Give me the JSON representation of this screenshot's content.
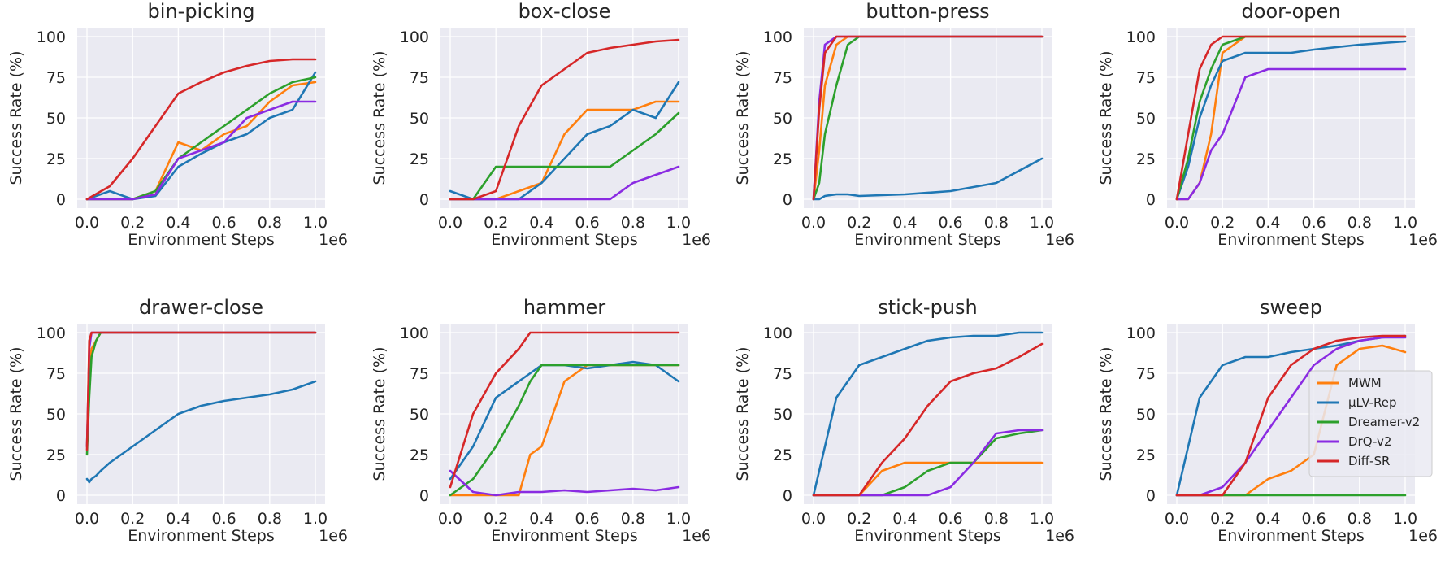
{
  "legend": {
    "placement": "center-right of last panel",
    "entries": [
      "MWM",
      "μLV-Rep",
      "Dreamer-v2",
      "DrQ-v2",
      "Diff-SR"
    ]
  },
  "colors": {
    "MWM": "#ff7f0e",
    "μLV-Rep": "#1f77b4",
    "Dreamer-v2": "#2ca02c",
    "DrQ-v2": "#8a2be2",
    "Diff-SR": "#d62728",
    "panel_background": "#eaeaf2",
    "grid": "#ffffff"
  },
  "chart_data": [
    {
      "type": "line",
      "title": "bin-picking",
      "xlabel": "Environment Steps",
      "ylabel": "Success Rate (%)",
      "x_multiplier": "1e6",
      "xlim": [
        0,
        1.0
      ],
      "ylim": [
        0,
        100
      ],
      "grid": true,
      "xticks": [
        "0.0",
        "0.2",
        "0.4",
        "0.6",
        "0.8",
        "1.0"
      ],
      "yticks": [
        "0",
        "25",
        "50",
        "75",
        "100"
      ],
      "x": [
        0.0,
        0.1,
        0.2,
        0.3,
        0.4,
        0.5,
        0.6,
        0.7,
        0.8,
        0.9,
        1.0
      ],
      "series": [
        {
          "name": "MWM",
          "values": [
            0,
            0,
            0,
            5,
            35,
            30,
            40,
            45,
            60,
            70,
            72
          ]
        },
        {
          "name": "μLV-Rep",
          "values": [
            0,
            5,
            0,
            2,
            20,
            28,
            35,
            40,
            50,
            55,
            78
          ]
        },
        {
          "name": "Dreamer-v2",
          "values": [
            0,
            0,
            0,
            5,
            25,
            35,
            45,
            55,
            65,
            72,
            75
          ]
        },
        {
          "name": "DrQ-v2",
          "values": [
            0,
            0,
            0,
            3,
            25,
            30,
            35,
            50,
            55,
            60,
            60
          ]
        },
        {
          "name": "Diff-SR",
          "values": [
            0,
            8,
            25,
            45,
            65,
            72,
            78,
            82,
            85,
            86,
            86
          ]
        }
      ]
    },
    {
      "type": "line",
      "title": "box-close",
      "xlabel": "Environment Steps",
      "ylabel": "Success Rate (%)",
      "x_multiplier": "1e6",
      "xlim": [
        0,
        1.0
      ],
      "ylim": [
        0,
        100
      ],
      "grid": true,
      "xticks": [
        "0.0",
        "0.2",
        "0.4",
        "0.6",
        "0.8",
        "1.0"
      ],
      "yticks": [
        "0",
        "25",
        "50",
        "75",
        "100"
      ],
      "x": [
        0.0,
        0.1,
        0.2,
        0.3,
        0.4,
        0.5,
        0.6,
        0.7,
        0.8,
        0.9,
        1.0
      ],
      "series": [
        {
          "name": "MWM",
          "values": [
            0,
            0,
            0,
            5,
            10,
            40,
            55,
            55,
            55,
            60,
            60
          ]
        },
        {
          "name": "μLV-Rep",
          "values": [
            5,
            0,
            0,
            0,
            10,
            25,
            40,
            45,
            55,
            50,
            72
          ]
        },
        {
          "name": "Dreamer-v2",
          "values": [
            0,
            0,
            20,
            20,
            20,
            20,
            20,
            20,
            30,
            40,
            53
          ]
        },
        {
          "name": "DrQ-v2",
          "values": [
            0,
            0,
            0,
            0,
            0,
            0,
            0,
            0,
            10,
            15,
            20
          ]
        },
        {
          "name": "Diff-SR",
          "values": [
            0,
            0,
            5,
            45,
            70,
            80,
            90,
            93,
            95,
            97,
            98
          ]
        }
      ]
    },
    {
      "type": "line",
      "title": "button-press",
      "xlabel": "Environment Steps",
      "ylabel": "Success Rate (%)",
      "x_multiplier": "1e6",
      "xlim": [
        0,
        1.0
      ],
      "ylim": [
        0,
        100
      ],
      "grid": true,
      "xticks": [
        "0.0",
        "0.2",
        "0.4",
        "0.6",
        "0.8",
        "1.0"
      ],
      "yticks": [
        "0",
        "25",
        "50",
        "75",
        "100"
      ],
      "x": [
        0.0,
        0.025,
        0.05,
        0.1,
        0.15,
        0.2,
        0.4,
        0.6,
        0.8,
        1.0
      ],
      "series": [
        {
          "name": "MWM",
          "values": [
            0,
            30,
            70,
            95,
            100,
            100,
            100,
            100,
            100,
            100
          ]
        },
        {
          "name": "μLV-Rep",
          "values": [
            0,
            0,
            2,
            3,
            3,
            2,
            3,
            5,
            10,
            25
          ]
        },
        {
          "name": "Dreamer-v2",
          "values": [
            0,
            10,
            40,
            70,
            95,
            100,
            100,
            100,
            100,
            100
          ]
        },
        {
          "name": "DrQ-v2",
          "values": [
            0,
            60,
            95,
            100,
            100,
            100,
            100,
            100,
            100,
            100
          ]
        },
        {
          "name": "Diff-SR",
          "values": [
            0,
            55,
            90,
            100,
            100,
            100,
            100,
            100,
            100,
            100
          ]
        }
      ]
    },
    {
      "type": "line",
      "title": "door-open",
      "xlabel": "Environment Steps",
      "ylabel": "Success Rate (%)",
      "x_multiplier": "1e6",
      "xlim": [
        0,
        1.0
      ],
      "ylim": [
        0,
        100
      ],
      "grid": true,
      "xticks": [
        "0.0",
        "0.2",
        "0.4",
        "0.6",
        "0.8",
        "1.0"
      ],
      "yticks": [
        "0",
        "25",
        "50",
        "75",
        "100"
      ],
      "x": [
        0.0,
        0.05,
        0.1,
        0.15,
        0.2,
        0.3,
        0.4,
        0.5,
        0.6,
        0.8,
        1.0
      ],
      "series": [
        {
          "name": "MWM",
          "values": [
            0,
            0,
            10,
            40,
            90,
            100,
            100,
            100,
            100,
            100,
            100
          ]
        },
        {
          "name": "μLV-Rep",
          "values": [
            0,
            20,
            50,
            70,
            85,
            90,
            90,
            90,
            92,
            95,
            97
          ]
        },
        {
          "name": "Dreamer-v2",
          "values": [
            0,
            25,
            60,
            80,
            95,
            100,
            100,
            100,
            100,
            100,
            100
          ]
        },
        {
          "name": "DrQ-v2",
          "values": [
            0,
            0,
            10,
            30,
            40,
            75,
            80,
            80,
            80,
            80,
            80
          ]
        },
        {
          "name": "Diff-SR",
          "values": [
            0,
            40,
            80,
            95,
            100,
            100,
            100,
            100,
            100,
            100,
            100
          ]
        }
      ]
    },
    {
      "type": "line",
      "title": "drawer-close",
      "xlabel": "Environment Steps",
      "ylabel": "Success Rate (%)",
      "x_multiplier": "1e6",
      "xlim": [
        0,
        1.0
      ],
      "ylim": [
        0,
        100
      ],
      "grid": true,
      "xticks": [
        "0.0",
        "0.2",
        "0.4",
        "0.6",
        "0.8",
        "1.0"
      ],
      "yticks": [
        "0",
        "25",
        "50",
        "75",
        "100"
      ],
      "x": [
        0.0,
        0.01,
        0.02,
        0.04,
        0.06,
        0.1,
        0.2,
        0.3,
        0.4,
        0.5,
        0.6,
        0.7,
        0.8,
        0.9,
        1.0
      ],
      "series": [
        {
          "name": "MWM",
          "values": [
            30,
            80,
            90,
            95,
            100,
            100,
            100,
            100,
            100,
            100,
            100,
            100,
            100,
            100,
            100
          ]
        },
        {
          "name": "μLV-Rep",
          "values": [
            10,
            8,
            10,
            12,
            15,
            20,
            30,
            40,
            50,
            55,
            58,
            60,
            62,
            65,
            70
          ]
        },
        {
          "name": "Dreamer-v2",
          "values": [
            25,
            60,
            85,
            95,
            100,
            100,
            100,
            100,
            100,
            100,
            100,
            100,
            100,
            100,
            100
          ]
        },
        {
          "name": "DrQ-v2",
          "values": [
            30,
            90,
            100,
            100,
            100,
            100,
            100,
            100,
            100,
            100,
            100,
            100,
            100,
            100,
            100
          ]
        },
        {
          "name": "Diff-SR",
          "values": [
            28,
            95,
            100,
            100,
            100,
            100,
            100,
            100,
            100,
            100,
            100,
            100,
            100,
            100,
            100
          ]
        }
      ]
    },
    {
      "type": "line",
      "title": "hammer",
      "xlabel": "Environment Steps",
      "ylabel": "Success Rate (%)",
      "x_multiplier": "1e6",
      "xlim": [
        0,
        1.0
      ],
      "ylim": [
        0,
        100
      ],
      "grid": true,
      "xticks": [
        "0.0",
        "0.2",
        "0.4",
        "0.6",
        "0.8",
        "1.0"
      ],
      "yticks": [
        "0",
        "25",
        "50",
        "75",
        "100"
      ],
      "x": [
        0.0,
        0.1,
        0.2,
        0.3,
        0.35,
        0.4,
        0.5,
        0.6,
        0.7,
        0.8,
        0.9,
        1.0
      ],
      "series": [
        {
          "name": "MWM",
          "values": [
            0,
            0,
            0,
            0,
            25,
            30,
            70,
            80,
            80,
            80,
            80,
            80
          ]
        },
        {
          "name": "μLV-Rep",
          "values": [
            10,
            30,
            60,
            70,
            75,
            80,
            80,
            78,
            80,
            82,
            80,
            70
          ]
        },
        {
          "name": "Dreamer-v2",
          "values": [
            0,
            10,
            30,
            55,
            70,
            80,
            80,
            80,
            80,
            80,
            80,
            80
          ]
        },
        {
          "name": "DrQ-v2",
          "values": [
            15,
            2,
            0,
            2,
            2,
            2,
            3,
            2,
            3,
            4,
            3,
            5
          ]
        },
        {
          "name": "Diff-SR",
          "values": [
            5,
            50,
            75,
            90,
            100,
            100,
            100,
            100,
            100,
            100,
            100,
            100
          ]
        }
      ]
    },
    {
      "type": "line",
      "title": "stick-push",
      "xlabel": "Environment Steps",
      "ylabel": "Success Rate (%)",
      "x_multiplier": "1e6",
      "xlim": [
        0,
        1.0
      ],
      "ylim": [
        0,
        100
      ],
      "grid": true,
      "xticks": [
        "0.0",
        "0.2",
        "0.4",
        "0.6",
        "0.8",
        "1.0"
      ],
      "yticks": [
        "0",
        "25",
        "50",
        "75",
        "100"
      ],
      "x": [
        0.0,
        0.1,
        0.2,
        0.3,
        0.4,
        0.5,
        0.6,
        0.7,
        0.8,
        0.9,
        1.0
      ],
      "series": [
        {
          "name": "MWM",
          "values": [
            0,
            0,
            0,
            15,
            20,
            20,
            20,
            20,
            20,
            20,
            20
          ]
        },
        {
          "name": "μLV-Rep",
          "values": [
            0,
            60,
            80,
            85,
            90,
            95,
            97,
            98,
            98,
            100,
            100
          ]
        },
        {
          "name": "Dreamer-v2",
          "values": [
            0,
            0,
            0,
            0,
            5,
            15,
            20,
            20,
            35,
            38,
            40
          ]
        },
        {
          "name": "DrQ-v2",
          "values": [
            0,
            0,
            0,
            0,
            0,
            0,
            5,
            20,
            38,
            40,
            40
          ]
        },
        {
          "name": "Diff-SR",
          "values": [
            0,
            0,
            0,
            20,
            35,
            55,
            70,
            75,
            78,
            85,
            93
          ]
        }
      ]
    },
    {
      "type": "line",
      "title": "sweep",
      "xlabel": "Environment Steps",
      "ylabel": "Success Rate (%)",
      "x_multiplier": "1e6",
      "xlim": [
        0,
        1.0
      ],
      "ylim": [
        0,
        100
      ],
      "grid": true,
      "xticks": [
        "0.0",
        "0.2",
        "0.4",
        "0.6",
        "0.8",
        "1.0"
      ],
      "yticks": [
        "0",
        "25",
        "50",
        "75",
        "100"
      ],
      "x": [
        0.0,
        0.1,
        0.2,
        0.3,
        0.4,
        0.5,
        0.6,
        0.7,
        0.8,
        0.9,
        1.0
      ],
      "series": [
        {
          "name": "MWM",
          "values": [
            0,
            0,
            0,
            0,
            10,
            15,
            25,
            80,
            90,
            92,
            88
          ]
        },
        {
          "name": "μLV-Rep",
          "values": [
            0,
            60,
            80,
            85,
            85,
            88,
            90,
            92,
            95,
            97,
            98
          ]
        },
        {
          "name": "Dreamer-v2",
          "values": [
            0,
            0,
            0,
            0,
            0,
            0,
            0,
            0,
            0,
            0,
            0
          ]
        },
        {
          "name": "DrQ-v2",
          "values": [
            0,
            0,
            5,
            20,
            40,
            60,
            80,
            90,
            95,
            97,
            97
          ]
        },
        {
          "name": "Diff-SR",
          "values": [
            0,
            0,
            0,
            20,
            60,
            80,
            90,
            95,
            97,
            98,
            98
          ]
        }
      ]
    }
  ]
}
